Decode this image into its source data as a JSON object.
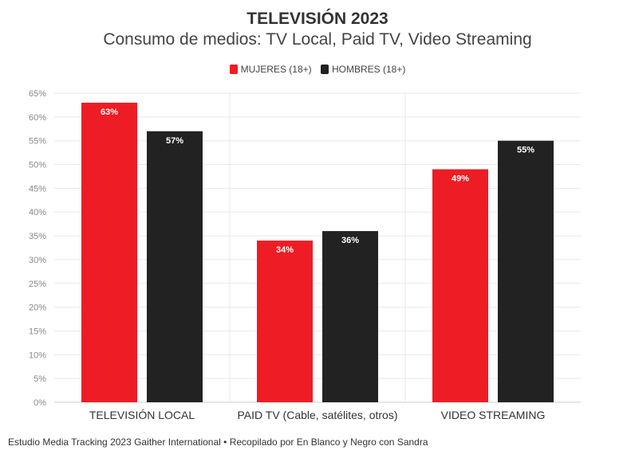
{
  "chart_data": {
    "type": "bar",
    "title": "TELEVISIÓN 2023",
    "subtitle": "Consumo de medios: TV Local, Paid TV, Video Streaming",
    "categories": [
      "TELEVISIÓN LOCAL",
      "PAID TV (Cable, satélites, otros)",
      "VIDEO STREAMING"
    ],
    "series": [
      {
        "name": "MUJERES (18+)",
        "color": "#ee1c24",
        "values": [
          63,
          34,
          49
        ],
        "labels": [
          "63%",
          "34%",
          "49%"
        ]
      },
      {
        "name": "HOMBRES (18+)",
        "color": "#222222",
        "values": [
          57,
          36,
          55
        ],
        "labels": [
          "57%",
          "36%",
          "55%"
        ]
      }
    ],
    "ylim": [
      0,
      65
    ],
    "yticks": [
      0,
      5,
      10,
      15,
      20,
      25,
      30,
      35,
      40,
      45,
      50,
      55,
      60,
      65
    ],
    "ytick_labels": [
      "0%",
      "5%",
      "10%",
      "15%",
      "20%",
      "25%",
      "30%",
      "35%",
      "40%",
      "45%",
      "50%",
      "55%",
      "60%",
      "65%"
    ],
    "grid": true,
    "legend_position": "top-center"
  },
  "footer": "Estudio Media Tracking 2023 Gaither International • Recopilado por En Blanco y Negro con Sandra"
}
